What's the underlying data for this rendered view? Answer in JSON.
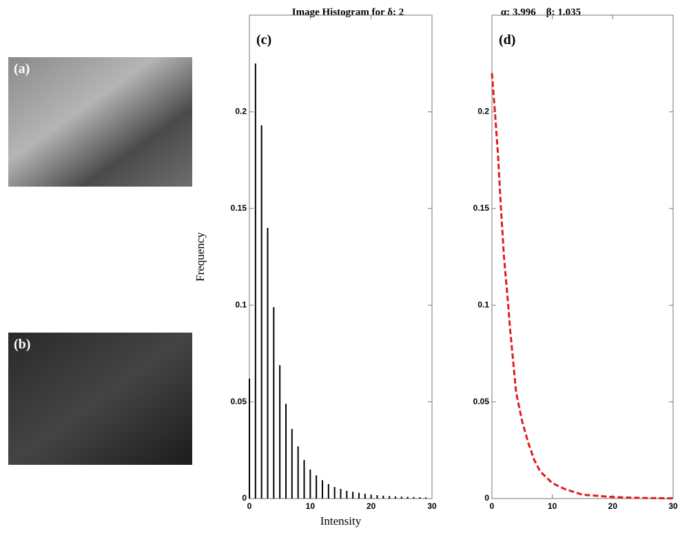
{
  "images": [
    {
      "label": "(a)"
    },
    {
      "label": "(b)"
    }
  ],
  "chart_data": [
    {
      "type": "bar",
      "title": "Image Histogram for δ: 2",
      "panel_label": "(c)",
      "x_label": "Intensity",
      "y_label": "Frequency",
      "color": "#000000",
      "x": [
        0,
        1,
        2,
        3,
        4,
        5,
        6,
        7,
        8,
        9,
        10,
        11,
        12,
        13,
        14,
        15,
        16,
        17,
        18,
        19,
        20,
        21,
        22,
        23,
        24,
        25,
        26,
        27,
        28,
        29
      ],
      "values": [
        0.062,
        0.225,
        0.193,
        0.14,
        0.099,
        0.069,
        0.049,
        0.036,
        0.027,
        0.02,
        0.015,
        0.012,
        0.0095,
        0.0075,
        0.006,
        0.005,
        0.004,
        0.0035,
        0.003,
        0.0025,
        0.002,
        0.0018,
        0.0015,
        0.0013,
        0.0011,
        0.001,
        0.0009,
        0.0008,
        0.0007,
        0.0006
      ],
      "xlim": [
        0,
        30
      ],
      "xticks": [
        0,
        10,
        20,
        30
      ],
      "ylim": [
        0,
        0.25
      ],
      "yticks": [
        0,
        0.05,
        0.1,
        0.15,
        0.2
      ]
    },
    {
      "type": "line",
      "title": "α: 3.996    β: 1.035",
      "panel_label": "(d)",
      "color": "#e41a1c",
      "dashed": true,
      "x": [
        0,
        0.5,
        1,
        1.5,
        2,
        2.7,
        3,
        4,
        5,
        6,
        7,
        8,
        10,
        12,
        15,
        20,
        25,
        30
      ],
      "values": [
        0.22,
        0.2,
        0.178,
        0.15,
        0.125,
        0.1,
        0.088,
        0.055,
        0.04,
        0.029,
        0.02,
        0.014,
        0.008,
        0.005,
        0.002,
        0.0008,
        0.0003,
        0.0001
      ],
      "xlim": [
        0,
        30
      ],
      "xticks": [
        0,
        10,
        20,
        30
      ],
      "ylim": [
        0,
        0.25
      ],
      "yticks": [
        0,
        0.05,
        0.1,
        0.15,
        0.2
      ]
    }
  ]
}
